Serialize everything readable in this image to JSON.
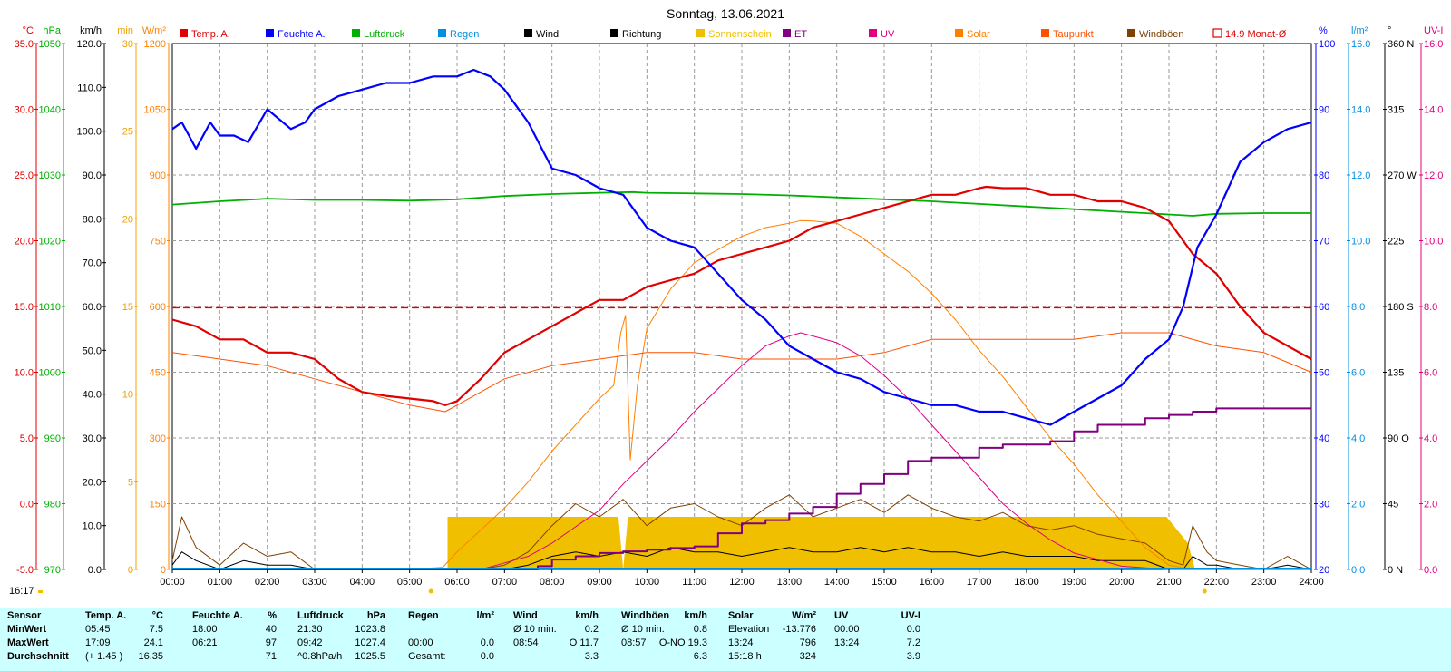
{
  "title": "Sonntag, 13.06.2021",
  "footer_time": "16:17",
  "legend": [
    {
      "label": "Temp. A.",
      "color": "#e00000"
    },
    {
      "label": "Feuchte A.",
      "color": "#0000ff"
    },
    {
      "label": "Luftdruck",
      "color": "#00b000"
    },
    {
      "label": "Regen",
      "color": "#0090e0"
    },
    {
      "label": "Wind",
      "color": "#000000"
    },
    {
      "label": "Richtung",
      "color": "#000000"
    },
    {
      "label": "Sonnenschein",
      "color": "#f0c000"
    },
    {
      "label": "ET",
      "color": "#800080"
    },
    {
      "label": "UV",
      "color": "#e00080"
    },
    {
      "label": "Solar",
      "color": "#ff8000"
    },
    {
      "label": "Taupunkt",
      "color": "#ff5000"
    },
    {
      "label": "Windböen",
      "color": "#804000"
    },
    {
      "label": "14.9 Monat-Ø",
      "color": "#e00000"
    }
  ],
  "axes_left": [
    {
      "unit": "°C",
      "color": "#e00000",
      "ticks": [
        "35.0",
        "30.0",
        "25.0",
        "20.0",
        "15.0",
        "10.0",
        "5.0",
        "0.0",
        "-5.0"
      ]
    },
    {
      "unit": "hPa",
      "color": "#00b000",
      "ticks": [
        "1050",
        "1040",
        "1030",
        "1020",
        "1010",
        "1000",
        "990",
        "980",
        "970"
      ]
    },
    {
      "unit": "km/h",
      "color": "#000000",
      "ticks": [
        "120.0",
        "110.0",
        "100.0",
        "90.0",
        "80.0",
        "70.0",
        "60.0",
        "50.0",
        "40.0",
        "30.0",
        "20.0",
        "10.0",
        "0.0"
      ]
    },
    {
      "unit": "min",
      "color": "#f0a000",
      "ticks": [
        "30",
        "25",
        "20",
        "15",
        "10",
        "5",
        "0"
      ]
    },
    {
      "unit": "W/m²",
      "color": "#ff8000",
      "ticks": [
        "1200",
        "1050",
        "900",
        "750",
        "600",
        "450",
        "300",
        "150",
        "0"
      ]
    }
  ],
  "axes_right": [
    {
      "unit": "%",
      "color": "#0000ff",
      "ticks": [
        "100",
        "90",
        "80",
        "70",
        "60",
        "50",
        "40",
        "30",
        "20"
      ]
    },
    {
      "unit": "l/m²",
      "color": "#0090e0",
      "ticks": [
        "16.0",
        "14.0",
        "12.0",
        "10.0",
        "8.0",
        "6.0",
        "4.0",
        "2.0",
        "0.0"
      ]
    },
    {
      "unit": "°",
      "color": "#000000",
      "ticks": [
        "360 N",
        "315",
        "270 W",
        "225",
        "180 S",
        "135",
        "90 O",
        "45",
        "0 N"
      ]
    },
    {
      "unit": "UV-I",
      "color": "#e00080",
      "ticks": [
        "16.0",
        "14.0",
        "12.0",
        "10.0",
        "8.0",
        "6.0",
        "4.0",
        "2.0",
        "0.0"
      ]
    }
  ],
  "x_ticks": [
    "00:00",
    "01:00",
    "02:00",
    "03:00",
    "04:00",
    "05:00",
    "06:00",
    "07:00",
    "08:00",
    "09:00",
    "10:00",
    "11:00",
    "12:00",
    "13:00",
    "14:00",
    "15:00",
    "16:00",
    "17:00",
    "18:00",
    "19:00",
    "20:00",
    "21:00",
    "22:00",
    "23:00",
    "24:00"
  ],
  "chart_data": {
    "type": "line",
    "title": "Sonntag, 13.06.2021",
    "x_unit": "hour of day",
    "xlim": [
      0,
      24
    ],
    "monthly_avg_temp": 14.9,
    "sunrise": 5.45,
    "sunset": 21.75,
    "series": [
      {
        "name": "Temp. A.",
        "unit": "°C",
        "ylim": [
          -5,
          35
        ],
        "x": [
          0,
          0.5,
          1,
          1.5,
          2,
          2.5,
          3,
          3.5,
          4,
          4.5,
          5,
          5.5,
          5.75,
          6,
          6.5,
          7,
          7.5,
          8,
          8.5,
          9,
          9.5,
          10,
          10.5,
          11,
          11.5,
          12,
          12.5,
          13,
          13.5,
          14,
          14.5,
          15,
          15.5,
          16,
          16.5,
          17,
          17.15,
          17.5,
          18,
          18.5,
          19,
          19.5,
          20,
          20.5,
          21,
          21.5,
          22,
          22.5,
          23,
          23.5,
          24
        ],
        "y": [
          14,
          13.5,
          12.5,
          12.5,
          11.5,
          11.5,
          11,
          9.5,
          8.5,
          8.2,
          8,
          7.8,
          7.5,
          7.8,
          9.5,
          11.5,
          12.5,
          13.5,
          14.5,
          15.5,
          15.5,
          16.5,
          17,
          17.5,
          18.5,
          19,
          19.5,
          20,
          21,
          21.5,
          22,
          22.5,
          23,
          23.5,
          23.5,
          24,
          24.1,
          24,
          24,
          23.5,
          23.5,
          23,
          23,
          22.5,
          21.5,
          19,
          17.5,
          15,
          13,
          12,
          11
        ]
      },
      {
        "name": "Feuchte A.",
        "unit": "%",
        "ylim": [
          20,
          100
        ],
        "x": [
          0,
          0.2,
          0.5,
          0.8,
          1,
          1.3,
          1.6,
          2,
          2.5,
          2.8,
          3,
          3.5,
          4,
          4.5,
          5,
          5.5,
          6,
          6.35,
          6.7,
          7,
          7.5,
          8,
          8.5,
          9,
          9.5,
          10,
          10.5,
          11,
          11.5,
          12,
          12.5,
          13,
          13.5,
          14,
          14.5,
          15,
          15.5,
          16,
          16.5,
          17,
          17.5,
          18,
          18.5,
          19,
          19.5,
          20,
          20.5,
          21,
          21.3,
          21.6,
          22,
          22.5,
          23,
          23.5,
          24
        ],
        "y": [
          87,
          88,
          84,
          88,
          86,
          86,
          85,
          90,
          87,
          88,
          90,
          92,
          93,
          94,
          94,
          95,
          95,
          96,
          95,
          93,
          88,
          81,
          80,
          78,
          77,
          72,
          70,
          69,
          65,
          61,
          58,
          54,
          52,
          50,
          49,
          47,
          46,
          45,
          45,
          44,
          44,
          43,
          42,
          44,
          46,
          48,
          52,
          55,
          60,
          69,
          74,
          82,
          85,
          87,
          88
        ]
      },
      {
        "name": "Luftdruck",
        "unit": "hPa",
        "ylim": [
          970,
          1050
        ],
        "x": [
          0,
          1,
          2,
          3,
          4,
          5,
          6,
          7,
          8,
          9,
          9.7,
          10,
          11,
          12,
          13,
          14,
          15,
          16,
          17,
          18,
          19,
          20,
          21,
          21.5,
          22,
          23,
          24
        ],
        "y": [
          1025.5,
          1026,
          1026.4,
          1026.2,
          1026.2,
          1026.1,
          1026.3,
          1026.8,
          1027.1,
          1027.3,
          1027.4,
          1027.3,
          1027.2,
          1027.1,
          1026.9,
          1026.6,
          1026.3,
          1026,
          1025.6,
          1025.2,
          1024.8,
          1024.4,
          1024,
          1023.8,
          1024.1,
          1024.2,
          1024.2
        ]
      },
      {
        "name": "Solar",
        "unit": "W/m²",
        "ylim": [
          0,
          1200
        ],
        "x": [
          0,
          5,
          5.7,
          6,
          6.5,
          7,
          7.5,
          8,
          8.5,
          9,
          9.3,
          9.45,
          9.55,
          9.65,
          9.8,
          10,
          10.5,
          11,
          11.5,
          12,
          12.5,
          13,
          13.24,
          13.5,
          14,
          14.5,
          15,
          15.5,
          16,
          16.5,
          17,
          17.5,
          18,
          18.5,
          19,
          19.5,
          20,
          20.5,
          21,
          21.5,
          24
        ],
        "y": [
          0,
          0,
          5,
          40,
          90,
          140,
          200,
          270,
          330,
          390,
          420,
          540,
          580,
          250,
          420,
          550,
          640,
          700,
          730,
          760,
          780,
          790,
          796,
          795,
          790,
          760,
          720,
          680,
          630,
          570,
          500,
          440,
          370,
          300,
          240,
          170,
          110,
          50,
          10,
          0,
          0
        ]
      },
      {
        "name": "Taupunkt",
        "unit": "°C",
        "ylim": [
          -5,
          35
        ],
        "x": [
          0,
          1,
          2,
          3,
          4,
          5,
          5.75,
          6,
          7,
          8,
          9,
          10,
          11,
          12,
          13,
          14,
          15,
          16,
          17,
          18,
          19,
          20,
          21,
          22,
          23,
          24
        ],
        "y": [
          11.5,
          11,
          10.5,
          9.5,
          8.5,
          7.5,
          7,
          7.5,
          9.5,
          10.5,
          11,
          11.5,
          11.5,
          11,
          11,
          11,
          11.5,
          12.5,
          12.5,
          12.5,
          12.5,
          13,
          13,
          12,
          11.5,
          10
        ]
      },
      {
        "name": "UV",
        "unit": "UV-I",
        "ylim": [
          0,
          16
        ],
        "x": [
          0,
          6.5,
          7,
          7.5,
          8,
          8.5,
          9,
          9.5,
          10,
          10.5,
          11,
          11.5,
          12,
          12.5,
          13,
          13.24,
          13.5,
          14,
          14.5,
          15,
          15.5,
          16,
          16.5,
          17,
          17.5,
          18,
          18.5,
          19,
          19.5,
          20,
          20.5,
          21,
          24
        ],
        "y": [
          0,
          0,
          0.2,
          0.4,
          0.8,
          1.3,
          1.8,
          2.6,
          3.3,
          4,
          4.8,
          5.5,
          6.2,
          6.8,
          7.1,
          7.2,
          7.1,
          6.9,
          6.5,
          5.9,
          5.2,
          4.4,
          3.6,
          2.8,
          2,
          1.4,
          0.9,
          0.5,
          0.3,
          0.1,
          0.05,
          0,
          0
        ]
      },
      {
        "name": "ET",
        "unit": "l/m²",
        "ylim": [
          0,
          16
        ],
        "x": [
          0,
          7.3,
          7.7,
          8,
          8.5,
          9,
          9.5,
          10,
          10.5,
          11,
          11.5,
          12,
          12.5,
          13,
          13.5,
          14,
          14.5,
          15,
          15.5,
          16,
          16.5,
          17,
          17.5,
          18,
          18.5,
          19,
          19.5,
          20,
          20.5,
          21,
          21.5,
          22,
          23,
          24
        ],
        "y": [
          0,
          0,
          0.1,
          0.3,
          0.4,
          0.5,
          0.55,
          0.6,
          0.65,
          0.7,
          1.1,
          1.4,
          1.5,
          1.7,
          1.9,
          2.3,
          2.6,
          2.9,
          3.3,
          3.4,
          3.4,
          3.7,
          3.8,
          3.8,
          3.9,
          4.2,
          4.4,
          4.4,
          4.6,
          4.7,
          4.8,
          4.9,
          4.9,
          4.9
        ]
      },
      {
        "name": "Wind",
        "unit": "km/h",
        "ylim": [
          0,
          120
        ],
        "x": [
          0,
          0.2,
          0.5,
          1,
          1.5,
          2,
          2.5,
          3,
          5.7,
          6.5,
          7,
          7.5,
          8,
          8.5,
          9,
          9.5,
          10,
          10.5,
          11,
          11.5,
          12,
          12.5,
          13,
          13.5,
          14,
          14.5,
          15,
          15.5,
          16,
          16.5,
          17,
          17.5,
          18,
          18.5,
          19,
          19.5,
          20,
          20.5,
          21,
          21.3,
          21.5,
          21.8,
          22,
          22.5,
          23,
          23.5,
          24
        ],
        "y": [
          1,
          4,
          2,
          0,
          2,
          1,
          1,
          0,
          0,
          0,
          0,
          1,
          3,
          4,
          3,
          4,
          3,
          5,
          4,
          4,
          3,
          4,
          5,
          4,
          4,
          5,
          4,
          5,
          4,
          4,
          3,
          4,
          3,
          3,
          3,
          2,
          2,
          2,
          0,
          0,
          3,
          1,
          1,
          0,
          0,
          1,
          0
        ]
      },
      {
        "name": "Windböen",
        "unit": "km/h",
        "ylim": [
          0,
          120
        ],
        "x": [
          0,
          0.2,
          0.5,
          1,
          1.5,
          2,
          2.5,
          3,
          5.7,
          6.5,
          7,
          7.5,
          8,
          8.5,
          9,
          9.5,
          10,
          10.5,
          11,
          11.5,
          12,
          12.5,
          13,
          13.5,
          14,
          14.5,
          15,
          15.5,
          16,
          16.5,
          17,
          17.5,
          18,
          18.5,
          19,
          19.5,
          20,
          20.5,
          21,
          21.3,
          21.5,
          21.8,
          22,
          22.5,
          23,
          23.5,
          24
        ],
        "y": [
          2,
          12,
          5,
          1,
          6,
          3,
          4,
          0,
          0,
          0,
          1,
          4,
          10,
          15,
          12,
          16,
          10,
          14,
          15,
          12,
          10,
          14,
          17,
          12,
          14,
          16,
          13,
          17,
          14,
          12,
          11,
          13,
          10,
          9,
          10,
          8,
          7,
          6,
          2,
          1,
          10,
          4,
          2,
          1,
          0,
          3,
          0
        ]
      },
      {
        "name": "Sonnenschein",
        "unit": "min",
        "ylim": [
          0,
          30
        ],
        "x": [
          5.8,
          7,
          7.5,
          8,
          8.5,
          9,
          9.4,
          9.5,
          9.6,
          10,
          11,
          12,
          13,
          14,
          15,
          16,
          17,
          18,
          19,
          20,
          20.95,
          21.4,
          21.55
        ],
        "y": [
          3,
          3,
          3,
          3,
          3,
          3,
          3,
          0,
          3,
          3,
          3,
          3,
          3,
          3,
          3,
          3,
          3,
          3,
          3,
          3,
          3,
          1.5,
          0
        ]
      }
    ]
  },
  "stats": {
    "headers": {
      "sensor": "Sensor",
      "temp": "Temp. A.",
      "temp_unit": "°C",
      "hum": "Feuchte A.",
      "hum_unit": "%",
      "press": "Luftdruck",
      "press_unit": "hPa",
      "rain": "Regen",
      "rain_unit": "l/m²",
      "wind": "Wind",
      "wind_unit": "km/h",
      "gust": "Windböen",
      "gust_unit": "km/h",
      "solar": "Solar",
      "solar_unit": "W/m²",
      "uv": "UV",
      "uv_unit": "UV-I"
    },
    "rows": [
      {
        "label": "MinWert",
        "temp_time": "05:45",
        "temp_val": "7.5",
        "hum_time": "18:00",
        "hum_val": "40",
        "press_time": "21:30",
        "press_val": "1023.8",
        "rain_time": "",
        "rain_val": "",
        "wind_time": "Ø 10 min.",
        "wind_val": "0.2",
        "gust_time": "Ø 10 min.",
        "gust_val": "0.8",
        "solar_time": "Elevation",
        "solar_val": "-13.776",
        "uv_time": "00:00",
        "uv_val": "0.0"
      },
      {
        "label": "MaxWert",
        "temp_time": "17:09",
        "temp_val": "24.1",
        "hum_time": "06:21",
        "hum_val": "97",
        "press_time": "09:42",
        "press_val": "1027.4",
        "rain_time": "00:00",
        "rain_val": "0.0",
        "wind_time": "08:54",
        "wind_val": "O 11.7",
        "gust_time": "08:57",
        "gust_val": "O-NO 19.3",
        "solar_time": "13:24",
        "solar_val": "796",
        "uv_time": "13:24",
        "uv_val": "7.2"
      },
      {
        "label": "Durchschnitt",
        "temp_time": "(+ 1.45 )",
        "temp_val": "16.35",
        "hum_time": "",
        "hum_val": "71",
        "press_time": "^0.8hPa/h",
        "press_val": "1025.5",
        "rain_time": "Gesamt:",
        "rain_val": "0.0",
        "wind_time": "",
        "wind_val": "3.3",
        "gust_time": "",
        "gust_val": "6.3",
        "solar_time": "15:18 h",
        "solar_val": "324",
        "uv_time": "",
        "uv_val": "3.9"
      }
    ]
  }
}
